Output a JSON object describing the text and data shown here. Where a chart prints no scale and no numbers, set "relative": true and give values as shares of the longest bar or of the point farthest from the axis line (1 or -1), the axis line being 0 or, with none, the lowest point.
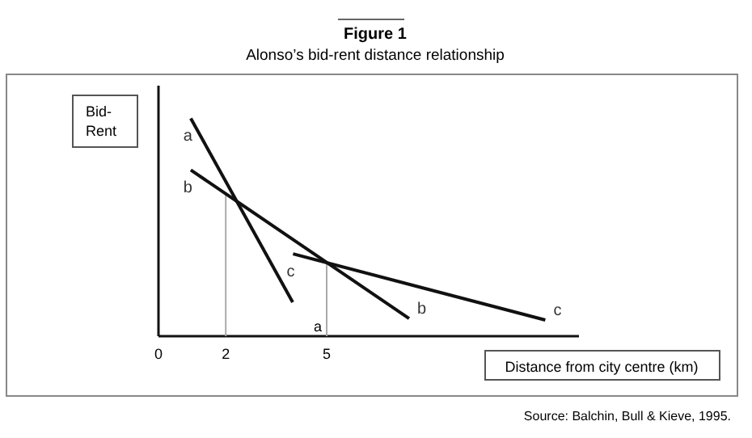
{
  "chart_data": {
    "type": "line",
    "title": "Figure 1",
    "subtitle": "Alonso’s bid-rent distance relationship",
    "xlabel": "Distance from city centre (km)",
    "ylabel": "Bid-Rent",
    "relative": true,
    "xlim": [
      0,
      12.5
    ],
    "xticks": [
      0,
      2,
      5
    ],
    "line_style": "solid",
    "marker": "none",
    "grid": false,
    "series": [
      {
        "name": "a",
        "color": "#111111",
        "x": [
          0.96,
          3.99
        ],
        "values": [
          1,
          0.156
        ]
      },
      {
        "name": "b",
        "color": "#111111",
        "x": [
          0.96,
          7.45
        ],
        "values": [
          0.763,
          0.081
        ]
      },
      {
        "name": "c",
        "color": "#111111",
        "x": [
          4.0,
          11.5
        ],
        "values": [
          0.378,
          0.074
        ]
      }
    ],
    "ref_lines": [
      {
        "axis": "x",
        "value": 2,
        "color": "#aaaaaa"
      },
      {
        "axis": "x",
        "value": 5,
        "color": "#aaaaaa",
        "label": "a"
      }
    ],
    "annotations": [
      {
        "text": "b",
        "x": 7.45,
        "y": 0.081
      },
      {
        "text": "c",
        "x": 11.5,
        "y": 0.074
      },
      "Source: Balchin, Bull & Kieve, 1995."
    ]
  }
}
